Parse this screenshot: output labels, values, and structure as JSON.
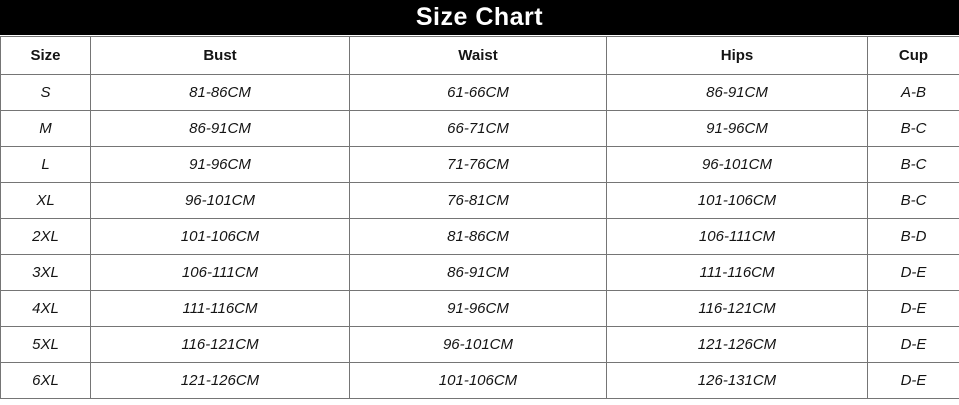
{
  "title": "Size Chart",
  "table": {
    "headers": [
      "Size",
      "Bust",
      "Waist",
      "Hips",
      "Cup"
    ],
    "rows": [
      {
        "size": "S",
        "bust": "81-86CM",
        "waist": "61-66CM",
        "hips": "86-91CM",
        "cup": "A-B"
      },
      {
        "size": "M",
        "bust": "86-91CM",
        "waist": "66-71CM",
        "hips": "91-96CM",
        "cup": "B-C"
      },
      {
        "size": "L",
        "bust": "91-96CM",
        "waist": "71-76CM",
        "hips": "96-101CM",
        "cup": "B-C"
      },
      {
        "size": "XL",
        "bust": "96-101CM",
        "waist": "76-81CM",
        "hips": "101-106CM",
        "cup": "B-C"
      },
      {
        "size": "2XL",
        "bust": "101-106CM",
        "waist": "81-86CM",
        "hips": "106-111CM",
        "cup": "B-D"
      },
      {
        "size": "3XL",
        "bust": "106-111CM",
        "waist": "86-91CM",
        "hips": "111-116CM",
        "cup": "D-E"
      },
      {
        "size": "4XL",
        "bust": "111-116CM",
        "waist": "91-96CM",
        "hips": "116-121CM",
        "cup": "D-E"
      },
      {
        "size": "5XL",
        "bust": "116-121CM",
        "waist": "96-101CM",
        "hips": "121-126CM",
        "cup": "D-E"
      },
      {
        "size": "6XL",
        "bust": "121-126CM",
        "waist": "101-106CM",
        "hips": "126-131CM",
        "cup": "D-E"
      }
    ]
  },
  "colors": {
    "title_bg": "#000000",
    "title_text": "#ffffff",
    "border": "#757575",
    "cell_text": "#141414",
    "background": "#ffffff"
  },
  "chart_data": {
    "type": "table",
    "title": "Size Chart",
    "columns": [
      "Size",
      "Bust",
      "Waist",
      "Hips",
      "Cup"
    ],
    "rows": [
      [
        "S",
        "81-86CM",
        "61-66CM",
        "86-91CM",
        "A-B"
      ],
      [
        "M",
        "86-91CM",
        "66-71CM",
        "91-96CM",
        "B-C"
      ],
      [
        "L",
        "91-96CM",
        "71-76CM",
        "96-101CM",
        "B-C"
      ],
      [
        "XL",
        "96-101CM",
        "76-81CM",
        "101-106CM",
        "B-C"
      ],
      [
        "2XL",
        "101-106CM",
        "81-86CM",
        "106-111CM",
        "B-D"
      ],
      [
        "3XL",
        "106-111CM",
        "86-91CM",
        "111-116CM",
        "D-E"
      ],
      [
        "4XL",
        "111-116CM",
        "91-96CM",
        "116-121CM",
        "D-E"
      ],
      [
        "5XL",
        "116-121CM",
        "96-101CM",
        "121-126CM",
        "D-E"
      ],
      [
        "6XL",
        "121-126CM",
        "101-106CM",
        "126-131CM",
        "D-E"
      ]
    ],
    "layout": {
      "header_style": "bold",
      "data_style": "italic",
      "grid": true,
      "title_position": "top-black-bar"
    }
  }
}
